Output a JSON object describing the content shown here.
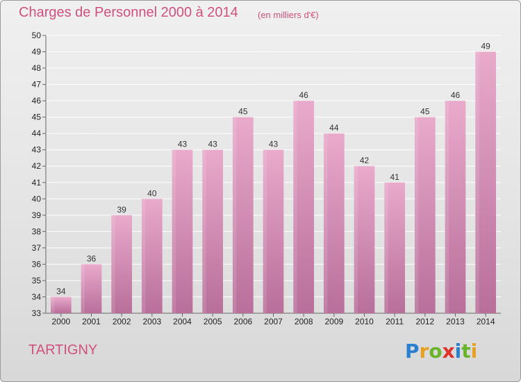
{
  "title": "Charges de Personnel 2000 à 2014",
  "subtitle": "(en milliers d'€)",
  "place": "TARTIGNY",
  "logo": {
    "letters": [
      "P",
      "r",
      "o",
      "x",
      "i",
      "t",
      "i"
    ],
    "colors": [
      "#2a7fd0",
      "#e8a020",
      "#6ab42a",
      "#e0302a",
      "#2a7fd0",
      "#6ab42a",
      "#e8a020"
    ]
  },
  "colors": {
    "bar_top": "#e9aacb",
    "bar_bottom": "#b86f9a",
    "title": "#d0507e"
  },
  "chart_data": {
    "type": "bar",
    "categories": [
      "2000",
      "2001",
      "2002",
      "2003",
      "2004",
      "2005",
      "2006",
      "2007",
      "2008",
      "2009",
      "2010",
      "2011",
      "2012",
      "2013",
      "2014"
    ],
    "values": [
      34,
      36,
      39,
      40,
      43,
      43,
      45,
      43,
      46,
      44,
      42,
      41,
      45,
      46,
      49
    ],
    "ylim": [
      33,
      50
    ],
    "yticks": [
      33,
      34,
      35,
      36,
      37,
      38,
      39,
      40,
      41,
      42,
      43,
      44,
      45,
      46,
      47,
      48,
      49,
      50
    ],
    "grid": true
  }
}
